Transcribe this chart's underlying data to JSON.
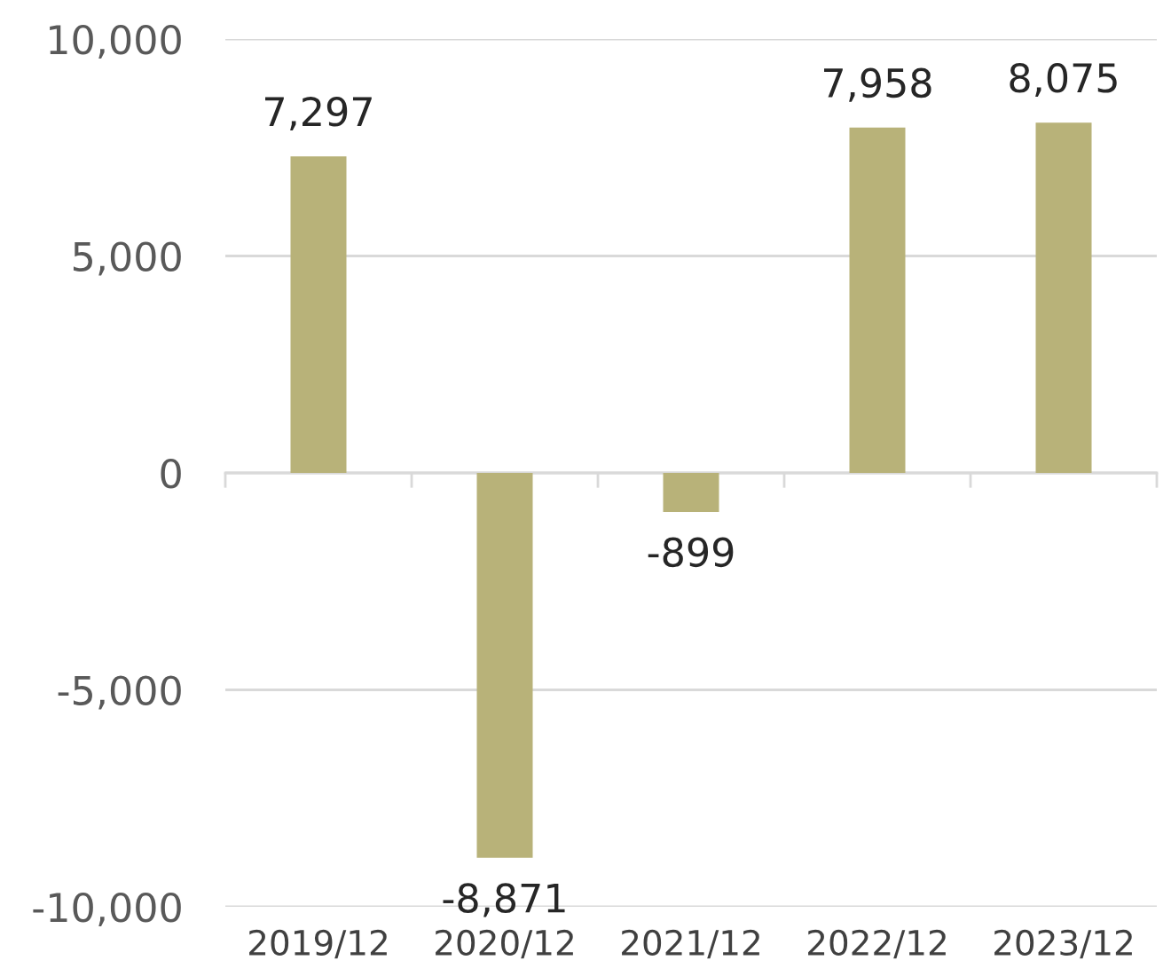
{
  "chart_data": {
    "type": "bar",
    "categories": [
      "2019/12",
      "2020/12",
      "2021/12",
      "2022/12",
      "2023/12"
    ],
    "values": [
      7297,
      -8871,
      -899,
      7958,
      8075
    ],
    "value_labels": [
      "7,297",
      "-8,871",
      "-899",
      "7,958",
      "8,075"
    ],
    "color": "#b8b279",
    "ylim": [
      -10000,
      10000
    ],
    "yticks": [
      {
        "value": -10000,
        "label": "-10,000"
      },
      {
        "value": -5000,
        "label": "-5,000"
      },
      0,
      {
        "value": 5000,
        "label": "5,000"
      },
      {
        "value": 10000,
        "label": "10,000"
      }
    ],
    "grid": "y"
  }
}
